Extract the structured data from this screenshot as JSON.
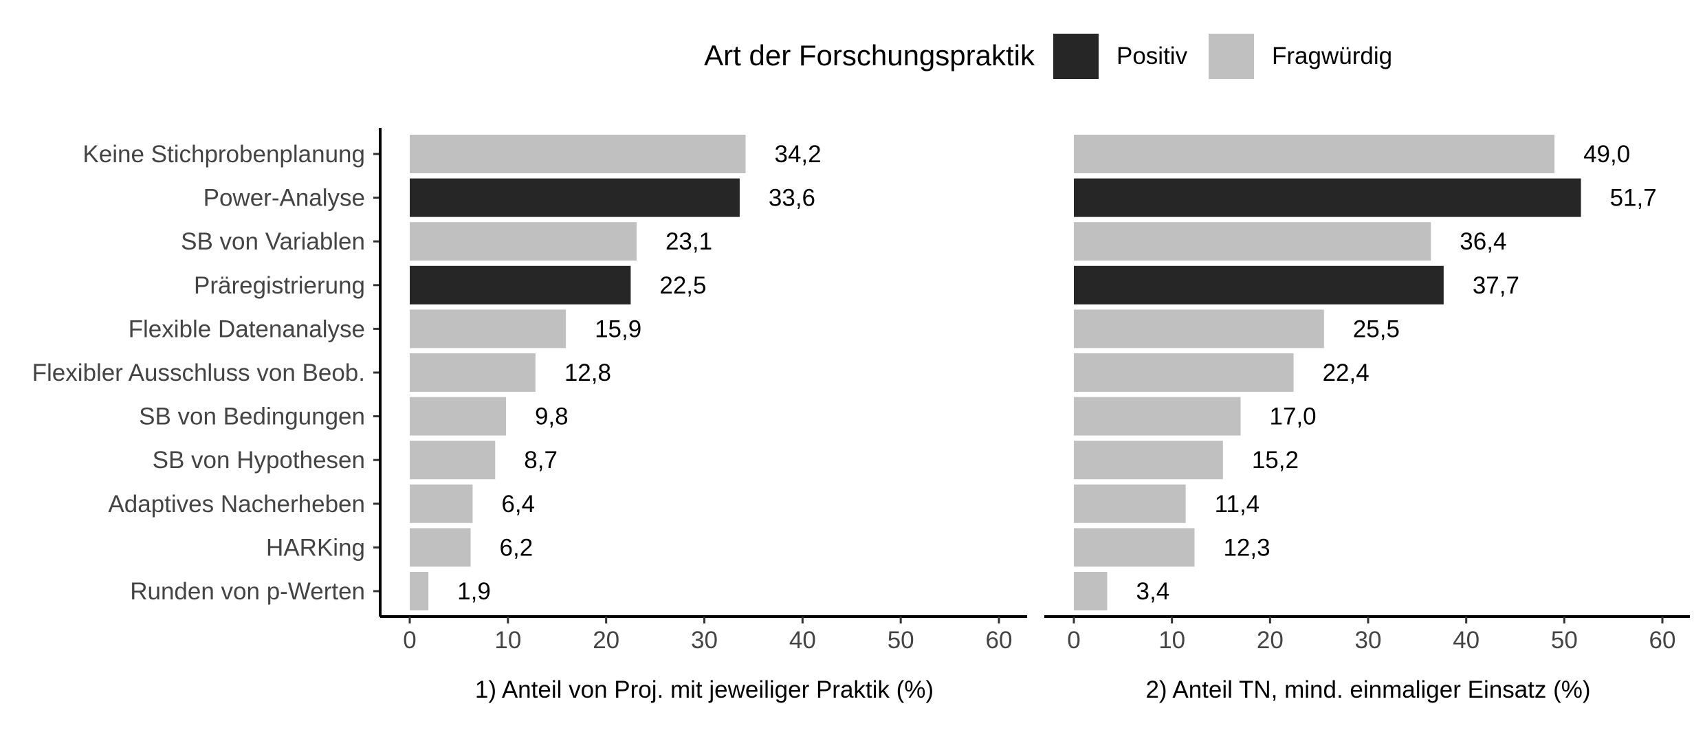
{
  "legend": {
    "title": "Art der Forschungspraktik",
    "items": [
      {
        "label": "Positiv",
        "color": "#262626"
      },
      {
        "label": "Fragwürdig",
        "color": "#c0c0c0"
      }
    ]
  },
  "chart_data": [
    {
      "type": "bar",
      "orientation": "horizontal",
      "xlabel": "1) Anteil von Proj. mit jeweiliger Praktik (%)",
      "xlim": [
        0,
        60
      ],
      "xticks": [
        "0",
        "10",
        "20",
        "30",
        "40",
        "50",
        "60"
      ],
      "categories": [
        "Keine Stichprobenplanung",
        "Power-Analyse",
        "SB von Variablen",
        "Präregistrierung",
        "Flexible Datenanalyse",
        "Flexibler Ausschluss von Beob.",
        "SB von Bedingungen",
        "SB von Hypothesen",
        "Adaptives Nacherheben",
        "HARKing",
        "Runden von p-Werten"
      ],
      "values": [
        34.2,
        33.6,
        23.1,
        22.5,
        15.9,
        12.8,
        9.8,
        8.7,
        6.4,
        6.2,
        1.9
      ],
      "value_labels": [
        "34,2",
        "33,6",
        "23,1",
        "22,5",
        "15,9",
        "12,8",
        "9,8",
        "8,7",
        "6,4",
        "6,2",
        "1,9"
      ],
      "kinds": [
        "Fragwürdig",
        "Positiv",
        "Fragwürdig",
        "Positiv",
        "Fragwürdig",
        "Fragwürdig",
        "Fragwürdig",
        "Fragwürdig",
        "Fragwürdig",
        "Fragwürdig",
        "Fragwürdig"
      ]
    },
    {
      "type": "bar",
      "orientation": "horizontal",
      "xlabel": "2) Anteil TN, mind. einmaliger Einsatz (%)",
      "xlim": [
        0,
        60
      ],
      "xticks": [
        "0",
        "10",
        "20",
        "30",
        "40",
        "50",
        "60"
      ],
      "categories": [
        "Keine Stichprobenplanung",
        "Power-Analyse",
        "SB von Variablen",
        "Präregistrierung",
        "Flexible Datenanalyse",
        "Flexibler Ausschluss von Beob.",
        "SB von Bedingungen",
        "SB von Hypothesen",
        "Adaptives Nacherheben",
        "HARKing",
        "Runden von p-Werten"
      ],
      "values": [
        49.0,
        51.7,
        36.4,
        37.7,
        25.5,
        22.4,
        17.0,
        15.2,
        11.4,
        12.3,
        3.4
      ],
      "value_labels": [
        "49,0",
        "51,7",
        "36,4",
        "37,7",
        "25,5",
        "22,4",
        "17,0",
        "15,2",
        "11,4",
        "12,3",
        "3,4"
      ],
      "kinds": [
        "Fragwürdig",
        "Positiv",
        "Fragwürdig",
        "Positiv",
        "Fragwürdig",
        "Fragwürdig",
        "Fragwürdig",
        "Fragwürdig",
        "Fragwürdig",
        "Fragwürdig",
        "Fragwürdig"
      ]
    }
  ]
}
